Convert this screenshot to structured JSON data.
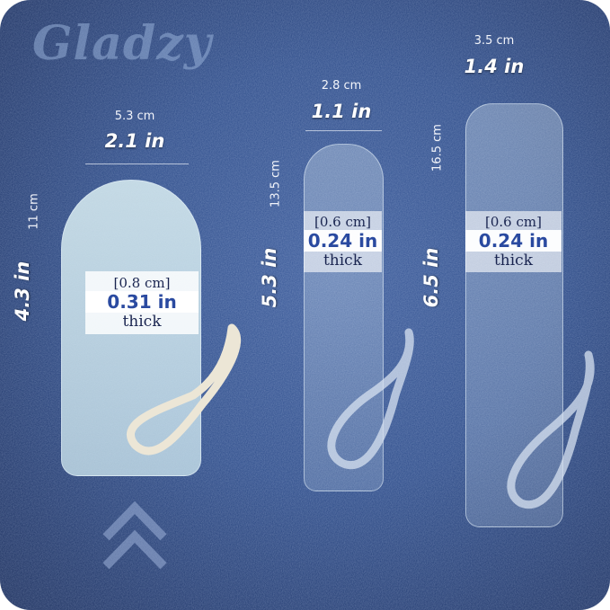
{
  "brand": {
    "logo": "Gladzy"
  },
  "colors": {
    "background": "#2b4a88",
    "glass": "#d8ebf2",
    "label": "#ffffff",
    "thickness_text": "#2a4aa0"
  },
  "products": [
    {
      "width_cm": "5.3 cm",
      "width_in": "2.1 in",
      "height_cm": "11 cm",
      "height_in": "4.3 in",
      "thick_cm": "[0.8 cm]",
      "thick_in": "0.31 in",
      "thick_label": "thick"
    },
    {
      "width_cm": "2.8 cm",
      "width_in": "1.1 in",
      "height_cm": "13.5 cm",
      "height_in": "5.3 in",
      "thick_cm": "[0.6 cm]",
      "thick_in": "0.24 in",
      "thick_label": "thick"
    },
    {
      "width_cm": "3.5 cm",
      "width_in": "1.4 in",
      "height_cm": "16.5 cm",
      "height_in": "6.5 in",
      "thick_cm": "[0.6 cm]",
      "thick_in": "0.24 in",
      "thick_label": "thick"
    }
  ],
  "icons": {
    "chevron": "double-chevron-up-icon",
    "rope": "rope-loop-icon"
  }
}
